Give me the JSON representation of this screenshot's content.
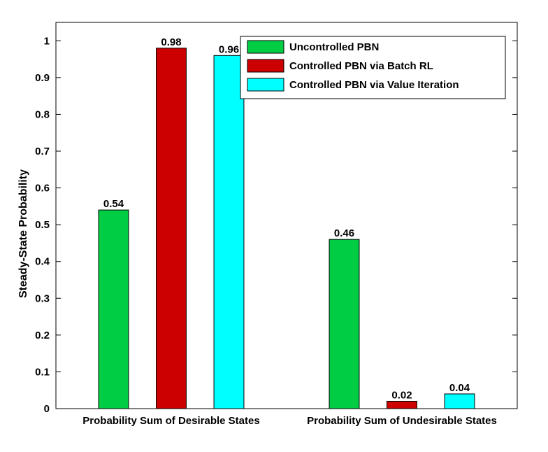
{
  "chart_data": {
    "type": "bar",
    "categories": [
      "Probability Sum of Desirable States",
      "Probability Sum of Undesirable States"
    ],
    "series": [
      {
        "name": "Uncontrolled PBN",
        "color": "#00cc44",
        "values": [
          0.54,
          0.46
        ],
        "labels": [
          "0.54",
          "0.46"
        ]
      },
      {
        "name": "Controlled PBN via Batch RL",
        "color": "#cc0000",
        "values": [
          0.98,
          0.02
        ],
        "labels": [
          "0.98",
          "0.02"
        ]
      },
      {
        "name": "Controlled PBN via Value Iteration",
        "color": "#00ffff",
        "values": [
          0.96,
          0.04
        ],
        "labels": [
          "0.96",
          "0.04"
        ]
      }
    ],
    "ylabel": "Steady-State Probability",
    "xlabel": "",
    "ylim": [
      0,
      1.05
    ],
    "yticks": [
      "0",
      "0.1",
      "0.2",
      "0.3",
      "0.4",
      "0.5",
      "0.6",
      "0.7",
      "0.8",
      "0.9",
      "1"
    ],
    "legend_position": "top-right",
    "grid": false
  }
}
